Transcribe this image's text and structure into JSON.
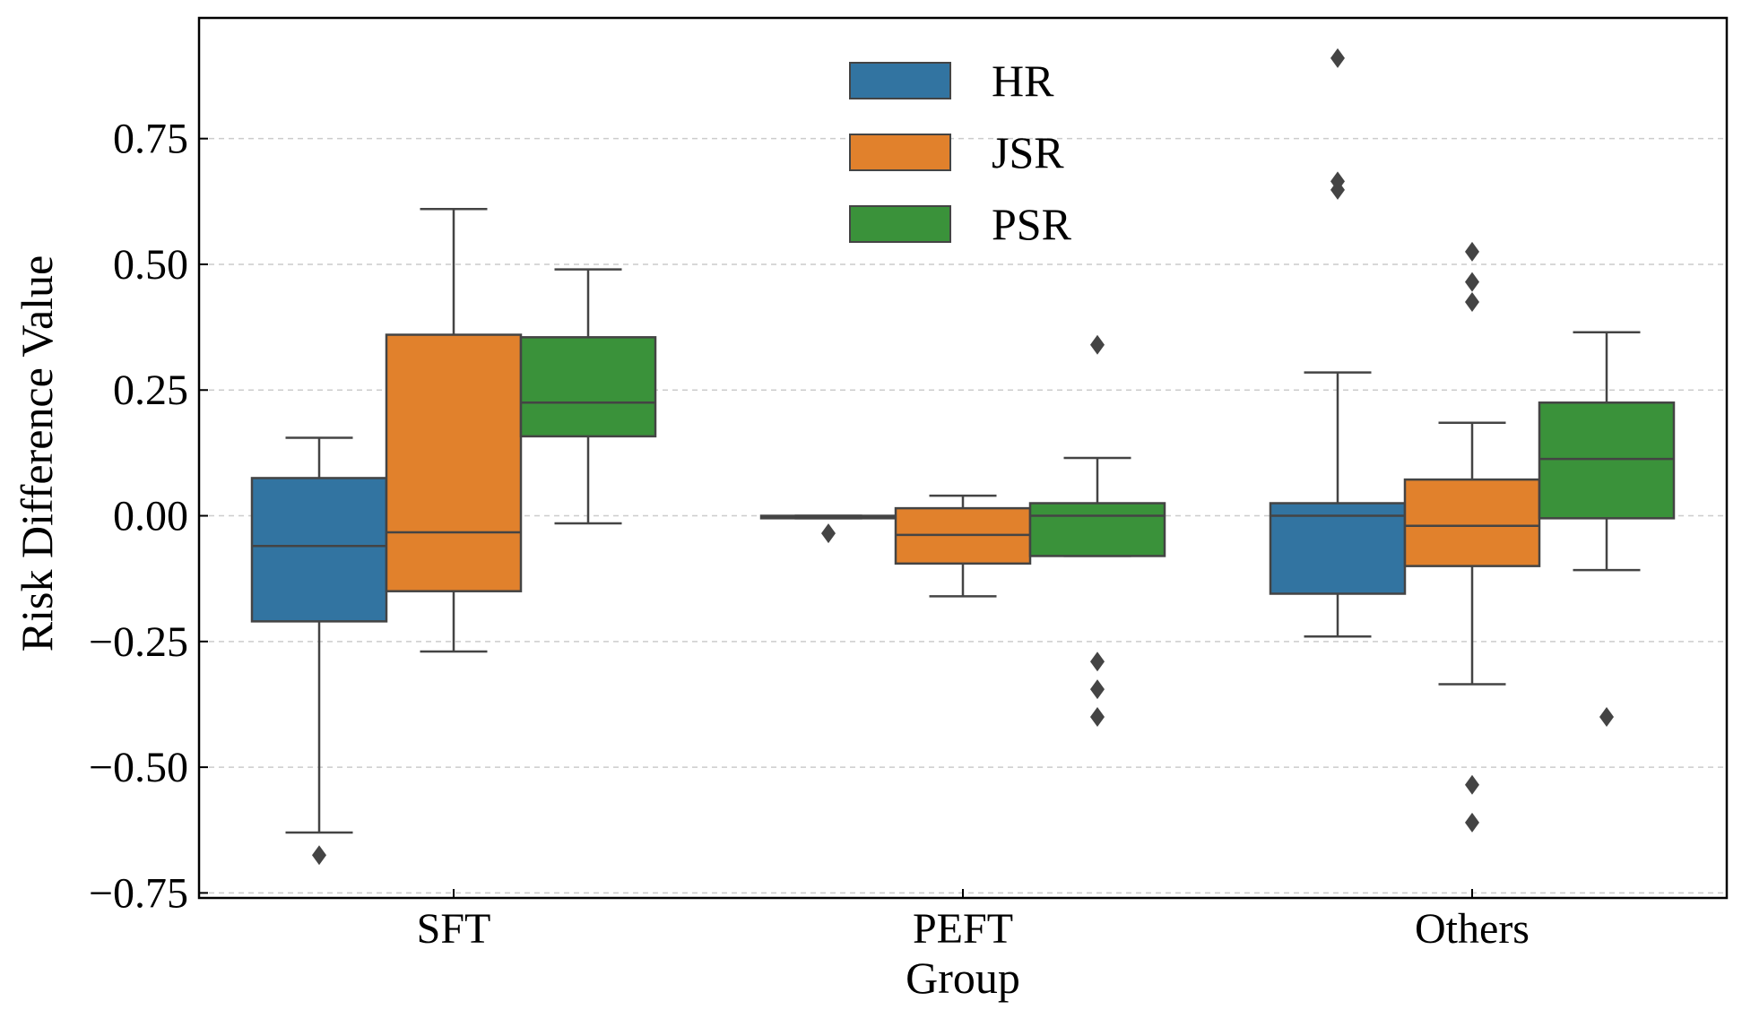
{
  "chart_data": {
    "type": "box",
    "xlabel": "Group",
    "ylabel": "Risk Difference Value",
    "categories": [
      "SFT",
      "PEFT",
      "Others"
    ],
    "ylim": [
      -0.76,
      0.99
    ],
    "yticks": [
      0.75,
      0.5,
      0.25,
      0.0,
      -0.25,
      -0.5,
      -0.75
    ],
    "ytick_labels": [
      "0.75",
      "0.50",
      "0.25",
      "0.00",
      "−0.25",
      "−0.50",
      "−0.75"
    ],
    "grid": "horizontal dashed",
    "legend_position": "top-center",
    "series": [
      {
        "name": "HR",
        "color": "#3274a1",
        "boxes": [
          {
            "q1": -0.21,
            "median": -0.06,
            "q3": 0.075,
            "whisker_low": -0.63,
            "whisker_high": 0.155,
            "outliers": [
              -0.675
            ]
          },
          {
            "q1": -0.005,
            "median": -0.003,
            "q3": 0.0,
            "whisker_low": -0.005,
            "whisker_high": 0.0,
            "outliers": [
              -0.035
            ]
          },
          {
            "q1": -0.155,
            "median": 0.0,
            "q3": 0.025,
            "whisker_low": -0.24,
            "whisker_high": 0.285,
            "outliers": [
              0.91,
              0.665,
              0.648
            ]
          }
        ]
      },
      {
        "name": "JSR",
        "color": "#e1812c",
        "boxes": [
          {
            "q1": -0.15,
            "median": -0.033,
            "q3": 0.36,
            "whisker_low": -0.27,
            "whisker_high": 0.61,
            "outliers": []
          },
          {
            "q1": -0.095,
            "median": -0.038,
            "q3": 0.015,
            "whisker_low": -0.16,
            "whisker_high": 0.04,
            "outliers": []
          },
          {
            "q1": -0.1,
            "median": -0.02,
            "q3": 0.072,
            "whisker_low": -0.335,
            "whisker_high": 0.185,
            "outliers": [
              0.525,
              0.465,
              0.425,
              -0.535,
              -0.61
            ]
          }
        ]
      },
      {
        "name": "PSR",
        "color": "#3a923a",
        "boxes": [
          {
            "q1": 0.158,
            "median": 0.225,
            "q3": 0.355,
            "whisker_low": -0.015,
            "whisker_high": 0.49,
            "outliers": []
          },
          {
            "q1": -0.08,
            "median": 0.0,
            "q3": 0.025,
            "whisker_low": -0.08,
            "whisker_high": 0.115,
            "outliers": [
              0.34,
              -0.29,
              -0.345,
              -0.4
            ]
          },
          {
            "q1": -0.005,
            "median": 0.113,
            "q3": 0.225,
            "whisker_low": -0.108,
            "whisker_high": 0.365,
            "outliers": [
              -0.4
            ]
          }
        ]
      }
    ]
  }
}
